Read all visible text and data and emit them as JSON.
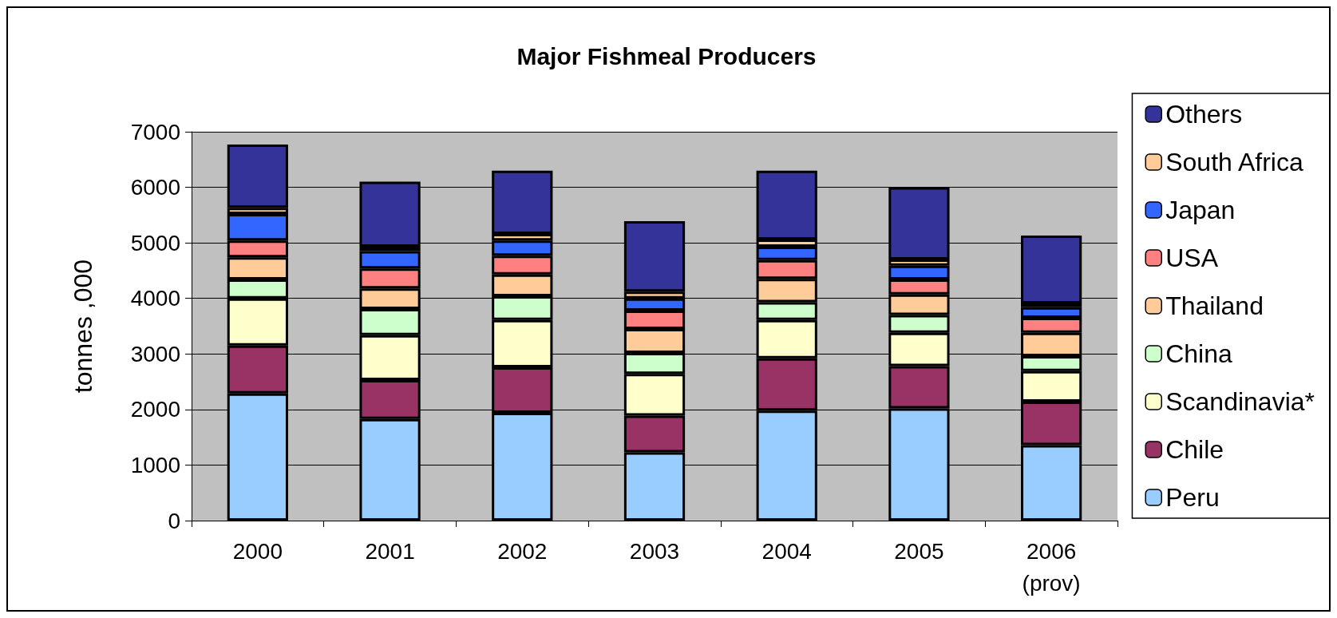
{
  "chart_data": {
    "type": "bar",
    "title": "Major Fishmeal Producers",
    "ylabel": "tonnes ,000",
    "categories": [
      "2000",
      "2001",
      "2002",
      "2003",
      "2004",
      "2005",
      "2006\n(prov)"
    ],
    "stacked": true,
    "ylim": [
      0,
      7000
    ],
    "yticks": [
      0,
      1000,
      2000,
      3000,
      4000,
      5000,
      6000,
      7000
    ],
    "grid": "y",
    "legend": "right",
    "series": [
      {
        "name": "Peru",
        "color": "#99ccff",
        "values": [
          2290,
          1830,
          1940,
          1230,
          1980,
          2020,
          1360
        ]
      },
      {
        "name": "Chile",
        "color": "#993366",
        "values": [
          860,
          700,
          820,
          660,
          940,
          760,
          780
        ]
      },
      {
        "name": "Scandinavia*",
        "color": "#ffffcc",
        "values": [
          850,
          810,
          850,
          750,
          690,
          600,
          550
        ]
      },
      {
        "name": "China",
        "color": "#ccffcc",
        "values": [
          340,
          470,
          430,
          380,
          320,
          320,
          270
        ]
      },
      {
        "name": "Thailand",
        "color": "#ffcc99",
        "values": [
          400,
          370,
          390,
          430,
          420,
          370,
          420
        ]
      },
      {
        "name": "USA",
        "color": "#ff8080",
        "values": [
          300,
          360,
          340,
          330,
          340,
          270,
          270
        ]
      },
      {
        "name": "Japan",
        "color": "#3366ff",
        "values": [
          480,
          310,
          270,
          220,
          240,
          250,
          190
        ]
      },
      {
        "name": "South Africa",
        "color": "#ffcc99",
        "values": [
          110,
          80,
          120,
          120,
          130,
          110,
          70
        ]
      },
      {
        "name": "Others",
        "color": "#333399",
        "values": [
          1140,
          1170,
          1140,
          1270,
          1240,
          1300,
          1220
        ]
      }
    ]
  }
}
